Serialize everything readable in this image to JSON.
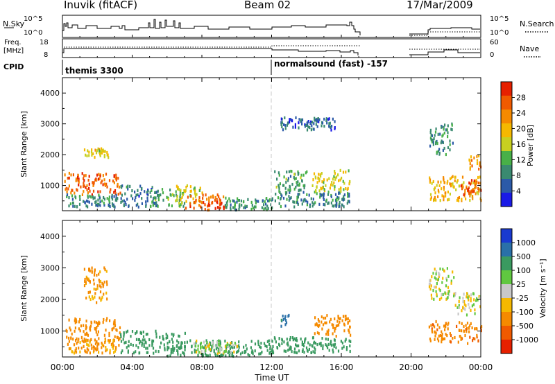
{
  "header": {
    "station": "Inuvik (fitACF)",
    "beam": "Beam 02",
    "date": "17/Mar/2009"
  },
  "summary_panels": {
    "nsky": {
      "left_label": "N.Sky",
      "left_ticks": [
        "10^5",
        "10^0"
      ],
      "right_ticks": [
        "10^5",
        "10^0"
      ],
      "right_label": "N.Search"
    },
    "freq": {
      "left_label_1": "Freq.",
      "left_label_2": "[MHz]",
      "left_ticks": [
        "18",
        "8"
      ],
      "right_ticks": [
        "60",
        "0"
      ],
      "right_label": "Nave"
    },
    "cpid": {
      "label": "CPID",
      "segments": [
        "themis 3300",
        "normalsound (fast) -157"
      ]
    }
  },
  "x_axis": {
    "label": "Time UT",
    "ticks": [
      "00:00",
      "04:00",
      "08:00",
      "12:00",
      "16:00",
      "20:00",
      "00:00"
    ]
  },
  "power_panel": {
    "ylabel": "Slant Range [km]",
    "yticks": [
      "1000",
      "2000",
      "3000",
      "4000"
    ],
    "colorbar_label": "Power [dB]",
    "colorbar_ticks": [
      "4",
      "8",
      "12",
      "16",
      "20",
      "24",
      "28"
    ],
    "colors": [
      "#1a1ae6",
      "#2c5aa8",
      "#3a8a70",
      "#48b048",
      "#c8d020",
      "#f5b800",
      "#f58a00",
      "#f05a00",
      "#e62000"
    ]
  },
  "velocity_panel": {
    "ylabel": "Slant Range [km]",
    "yticks": [
      "1000",
      "2000",
      "3000",
      "4000"
    ],
    "colorbar_label": "Velocity [m s⁻¹]",
    "colorbar_ticks": [
      "1000",
      "500",
      "100",
      "25",
      "-25",
      "-100",
      "-500",
      "-1000"
    ],
    "colors": [
      "#1a3ad0",
      "#2a70a8",
      "#3a9a60",
      "#60c840",
      "#c8c8c8",
      "#f5b800",
      "#f58a00",
      "#f05a00",
      "#e62000"
    ]
  },
  "chart_data": [
    {
      "type": "heatmap",
      "title": "Power",
      "xlabel": "Time UT",
      "ylabel": "Slant Range [km]",
      "xlim": [
        0,
        24
      ],
      "ylim": [
        180,
        4500
      ],
      "colorbar": "Power [dB]",
      "colorbar_range": [
        0,
        32
      ],
      "regions": [
        {
          "t": [
            0.1,
            3.3
          ],
          "range": [
            700,
            1400
          ],
          "value": 26
        },
        {
          "t": [
            0.2,
            3.2
          ],
          "range": [
            300,
            700
          ],
          "value": 9
        },
        {
          "t": [
            1.2,
            2.6
          ],
          "range": [
            1900,
            2200
          ],
          "value": 18
        },
        {
          "t": [
            3.3,
            5.5
          ],
          "range": [
            300,
            1000
          ],
          "value": 7
        },
        {
          "t": [
            5.0,
            7.0
          ],
          "range": [
            300,
            900
          ],
          "value": 12
        },
        {
          "t": [
            6.5,
            8.0
          ],
          "range": [
            400,
            1000
          ],
          "value": 17
        },
        {
          "t": [
            7.0,
            9.3
          ],
          "range": [
            200,
            700
          ],
          "value": 27
        },
        {
          "t": [
            9.3,
            12.0
          ],
          "range": [
            200,
            600
          ],
          "value": 10
        },
        {
          "t": [
            12.0,
            16.5
          ],
          "range": [
            300,
            800
          ],
          "value": 8
        },
        {
          "t": [
            12.1,
            14.0
          ],
          "range": [
            800,
            1500
          ],
          "value": 11
        },
        {
          "t": [
            14.3,
            16.5
          ],
          "range": [
            800,
            1500
          ],
          "value": 17
        },
        {
          "t": [
            12.4,
            15.6
          ],
          "range": [
            2800,
            3200
          ],
          "value": 6
        },
        {
          "t": [
            21.0,
            22.4
          ],
          "range": [
            2000,
            3000
          ],
          "value": 9
        },
        {
          "t": [
            21.0,
            24.0
          ],
          "range": [
            500,
            1300
          ],
          "value": 20
        },
        {
          "t": [
            22.8,
            24.0
          ],
          "range": [
            700,
            1200
          ],
          "value": 27
        },
        {
          "t": [
            23.3,
            24.0
          ],
          "range": [
            1500,
            2000
          ],
          "value": 22
        }
      ]
    },
    {
      "type": "heatmap",
      "title": "Velocity",
      "xlabel": "Time UT",
      "ylabel": "Slant Range [km]",
      "xlim": [
        0,
        24
      ],
      "ylim": [
        180,
        4500
      ],
      "colorbar": "Velocity [m s⁻¹]",
      "colorbar_ticks": [
        1000,
        500,
        100,
        25,
        -25,
        -100,
        -500,
        -1000
      ],
      "regions": [
        {
          "t": [
            0.1,
            3.3
          ],
          "range": [
            700,
            1400
          ],
          "value": -300
        },
        {
          "t": [
            0.2,
            3.2
          ],
          "range": [
            300,
            700
          ],
          "value": -150
        },
        {
          "t": [
            1.2,
            2.6
          ],
          "range": [
            1900,
            3000
          ],
          "value": -150
        },
        {
          "t": [
            3.3,
            7.0
          ],
          "range": [
            300,
            1000
          ],
          "value": 200
        },
        {
          "t": [
            6.0,
            12.0
          ],
          "range": [
            200,
            700
          ],
          "value": 250
        },
        {
          "t": [
            7.5,
            10.0
          ],
          "range": [
            300,
            700
          ],
          "value": 0
        },
        {
          "t": [
            12.0,
            16.5
          ],
          "range": [
            300,
            800
          ],
          "value": 300
        },
        {
          "t": [
            12.5,
            13.0
          ],
          "range": [
            1100,
            1500
          ],
          "value": 700
        },
        {
          "t": [
            14.3,
            16.5
          ],
          "range": [
            800,
            1500
          ],
          "value": -200
        },
        {
          "t": [
            21.0,
            22.5
          ],
          "range": [
            2000,
            3000
          ],
          "value": 0
        },
        {
          "t": [
            21.0,
            24.0
          ],
          "range": [
            600,
            1300
          ],
          "value": -400
        },
        {
          "t": [
            22.5,
            24.0
          ],
          "range": [
            1500,
            2200
          ],
          "value": 0
        }
      ]
    }
  ]
}
